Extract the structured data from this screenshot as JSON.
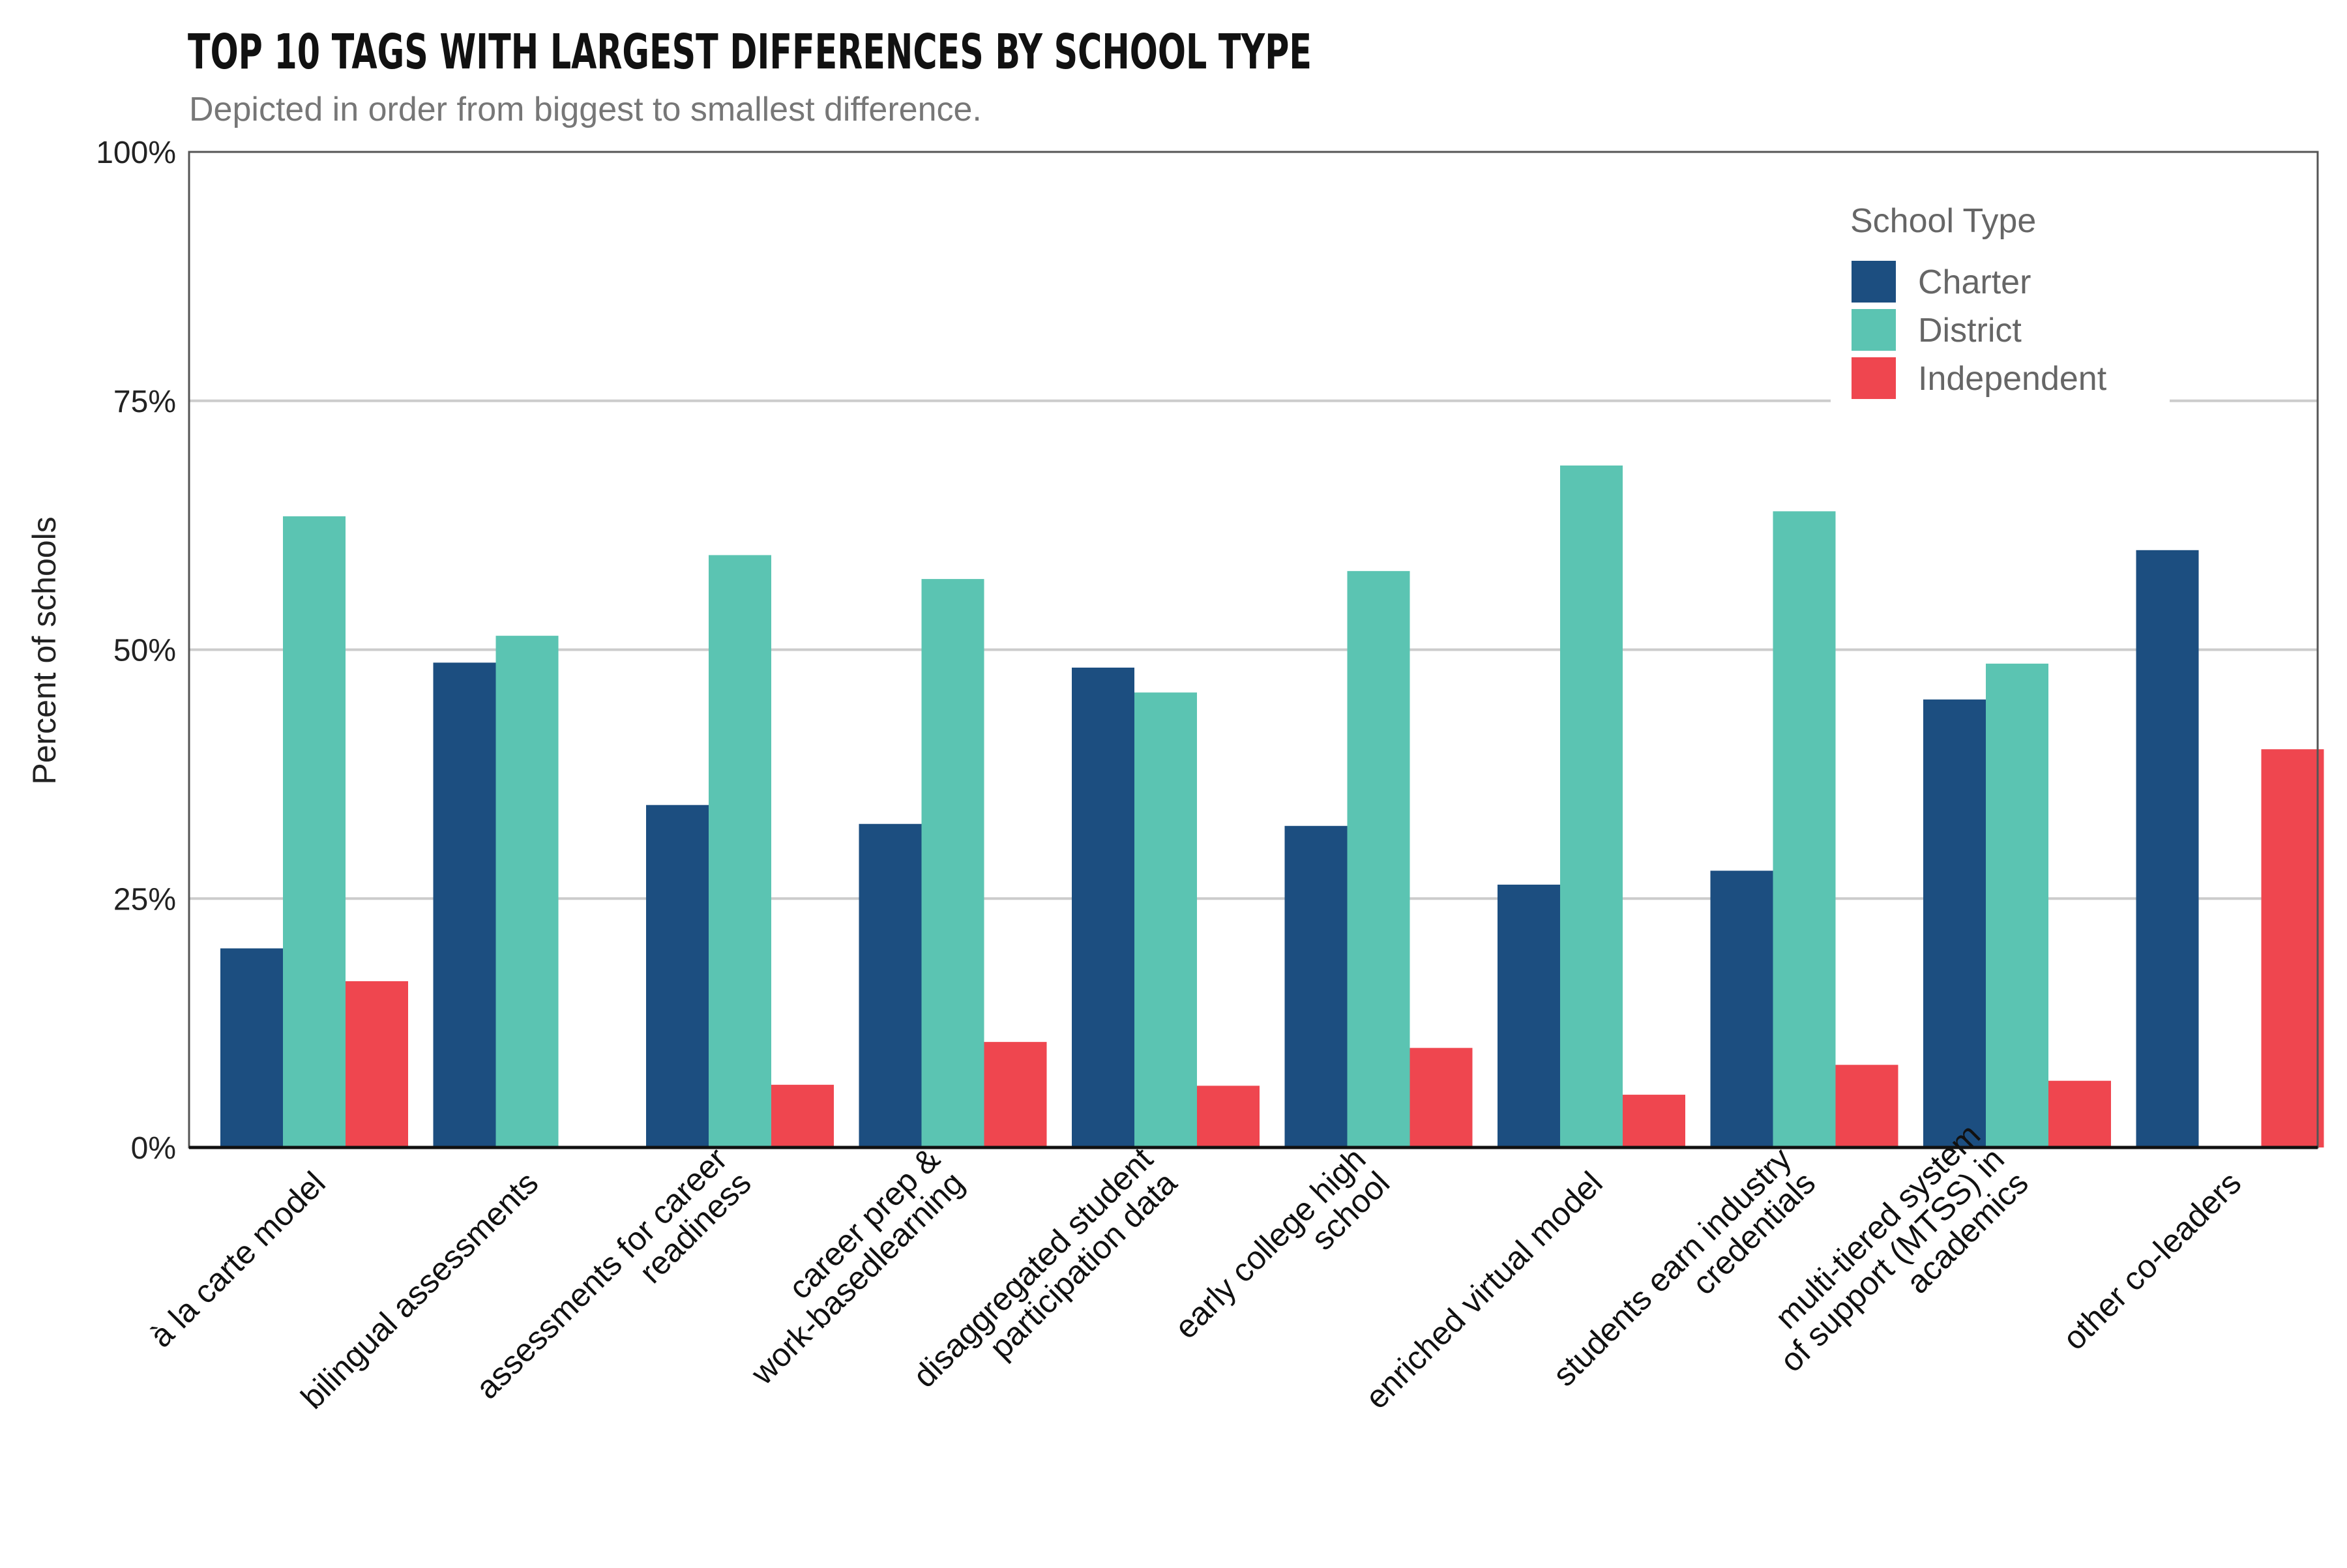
{
  "chart_data": {
    "type": "bar",
    "title": "TOP 10 TAGS WITH LARGEST DIFFERENCES BY SCHOOL TYPE",
    "subtitle": "Depicted in order from biggest to smallest difference.",
    "xlabel": "",
    "ylabel": "Percent of schools",
    "ylim": [
      0,
      100
    ],
    "yticks": [
      0,
      25,
      50,
      75,
      100
    ],
    "ytick_labels": [
      "0%",
      "25%",
      "50%",
      "75%",
      "100%"
    ],
    "grid": true,
    "legend": {
      "title": "School Type",
      "position": "top-right"
    },
    "categories": [
      [
        "à la carte model"
      ],
      [
        "bilingual assessments"
      ],
      [
        "assessments for career",
        "readiness"
      ],
      [
        "career prep &",
        "work-basedlearning"
      ],
      [
        "disaggregated student",
        "participation data"
      ],
      [
        "early college high",
        "school"
      ],
      [
        "enriched virtual model"
      ],
      [
        "students earn industry",
        "credentials"
      ],
      [
        "multi-tiered system",
        "of support (MTSS) in",
        "academics"
      ],
      [
        "other co-leaders"
      ]
    ],
    "series": [
      {
        "name": "Charter",
        "color": "#1c4e80",
        "values": [
          20,
          48.7,
          34.4,
          32.5,
          48.2,
          32.3,
          26.4,
          27.8,
          45,
          60
        ]
      },
      {
        "name": "District",
        "color": "#5bc4b2",
        "values": [
          63.4,
          51.4,
          59.5,
          57.1,
          45.7,
          57.9,
          68.5,
          63.9,
          48.6,
          0
        ]
      },
      {
        "name": "Independent",
        "color": "#ef464f",
        "values": [
          16.7,
          0,
          6.3,
          10.6,
          6.2,
          10,
          5.3,
          8.3,
          6.7,
          40
        ]
      }
    ]
  }
}
